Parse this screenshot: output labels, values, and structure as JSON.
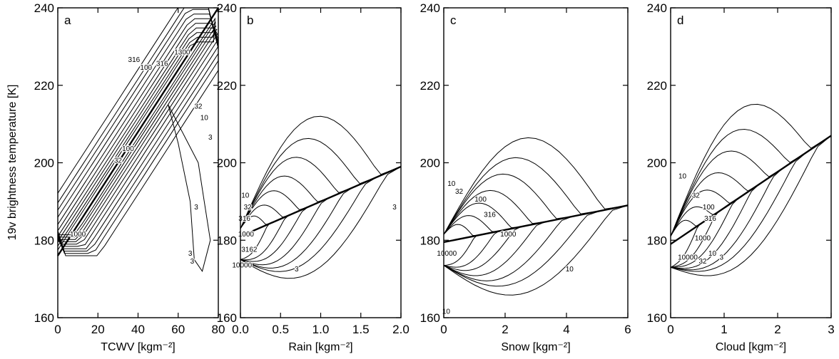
{
  "chart_data": {
    "type": "contour",
    "ylabel": "19v brightness temperature [K]",
    "ylim": [
      160,
      240
    ],
    "yticks": [
      160,
      180,
      200,
      220,
      240
    ],
    "panels": [
      {
        "letter": "a",
        "xlabel": "TCWV [kgm⁻²]",
        "xlim": [
          0,
          80
        ],
        "xticks": [
          "0",
          "20",
          "40",
          "60",
          "80"
        ],
        "fit_line": {
          "x": [
            0,
            80
          ],
          "y": [
            176,
            240
          ]
        },
        "contour_labels": [
          {
            "text": "316",
            "x": 38,
            "y": 226
          },
          {
            "text": "100",
            "x": 44,
            "y": 224
          },
          {
            "text": "316",
            "x": 52,
            "y": 225
          },
          {
            "text": "1000",
            "x": 62,
            "y": 228
          },
          {
            "text": "32",
            "x": 70,
            "y": 214
          },
          {
            "text": "10",
            "x": 73,
            "y": 211
          },
          {
            "text": "3",
            "x": 76,
            "y": 206
          },
          {
            "text": "3",
            "x": 61,
            "y": 228
          },
          {
            "text": "32",
            "x": 30,
            "y": 200
          },
          {
            "text": "100",
            "x": 35,
            "y": 203
          },
          {
            "text": "1000",
            "x": 10,
            "y": 181
          },
          {
            "text": "3",
            "x": 66,
            "y": 176
          },
          {
            "text": "3",
            "x": 67,
            "y": 174
          },
          {
            "text": "3",
            "x": 69,
            "y": 188
          }
        ]
      },
      {
        "letter": "b",
        "xlabel": "Rain [kgm⁻²]",
        "xlim": [
          0,
          2
        ],
        "xticks": [
          "0.0",
          "0.5",
          "1.0",
          "1.5",
          "2.0"
        ],
        "fit_line": {
          "x": [
            0,
            2
          ],
          "y": [
            181,
            199
          ]
        },
        "contour_labels": [
          {
            "text": "10",
            "x": 0.06,
            "y": 191
          },
          {
            "text": "32",
            "x": 0.09,
            "y": 188
          },
          {
            "text": "316",
            "x": 0.05,
            "y": 185
          },
          {
            "text": "1000",
            "x": 0.07,
            "y": 181
          },
          {
            "text": "3162",
            "x": 0.11,
            "y": 177
          },
          {
            "text": "10000",
            "x": 0.02,
            "y": 173
          },
          {
            "text": "3",
            "x": 0.7,
            "y": 172
          },
          {
            "text": "3",
            "x": 1.92,
            "y": 188
          }
        ]
      },
      {
        "letter": "c",
        "xlabel": "Snow [kgm⁻²]",
        "xlim": [
          0,
          6
        ],
        "xticks": [
          "0",
          "2",
          "4",
          "6"
        ],
        "fit_line": {
          "x": [
            0,
            6
          ],
          "y": [
            179.5,
            189
          ]
        },
        "contour_labels": [
          {
            "text": "10",
            "x": 0.25,
            "y": 194
          },
          {
            "text": "32",
            "x": 0.5,
            "y": 192
          },
          {
            "text": "100",
            "x": 1.2,
            "y": 190
          },
          {
            "text": "316",
            "x": 1.5,
            "y": 186
          },
          {
            "text": "1000",
            "x": 2.1,
            "y": 181
          },
          {
            "text": "10000",
            "x": 0.1,
            "y": 176
          },
          {
            "text": "10",
            "x": 4.1,
            "y": 172
          },
          {
            "text": "10",
            "x": 0.08,
            "y": 161
          }
        ]
      },
      {
        "letter": "d",
        "xlabel": "Cloud [kgm⁻²]",
        "xlim": [
          0,
          3
        ],
        "xticks": [
          "0",
          "1",
          "2",
          "3"
        ],
        "fit_line": {
          "x": [
            0,
            3
          ],
          "y": [
            179,
            207
          ]
        },
        "contour_labels": [
          {
            "text": "10",
            "x": 0.22,
            "y": 196
          },
          {
            "text": "32",
            "x": 0.47,
            "y": 191
          },
          {
            "text": "100",
            "x": 0.71,
            "y": 188
          },
          {
            "text": "316",
            "x": 0.74,
            "y": 185
          },
          {
            "text": "1000",
            "x": 0.6,
            "y": 180
          },
          {
            "text": "10000",
            "x": 0.32,
            "y": 175
          },
          {
            "text": "32",
            "x": 0.6,
            "y": 174
          },
          {
            "text": "10",
            "x": 0.78,
            "y": 176
          },
          {
            "text": "3",
            "x": 0.95,
            "y": 175
          }
        ]
      }
    ]
  }
}
